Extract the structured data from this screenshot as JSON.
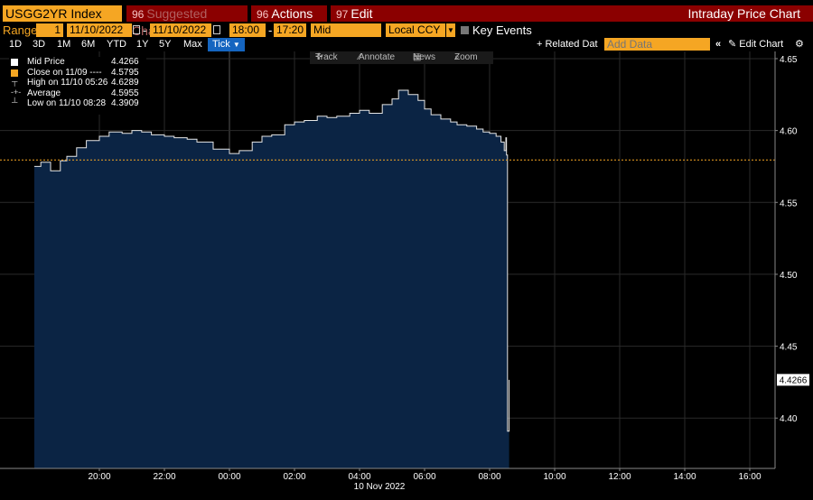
{
  "toolbar": {
    "ticker": "USGG2YR Index",
    "suggested": {
      "num": "96",
      "label": "Suggested Charts"
    },
    "actions": {
      "num": "96",
      "label": "Actions"
    },
    "edit": {
      "num": "97",
      "label": "Edit"
    },
    "title": "Intraday Price Chart"
  },
  "range_bar": {
    "range_label": "Range",
    "range_num": "1",
    "start_date": "11/10/2022",
    "end_date": "11/10/2022",
    "start_time": "18:00",
    "end_time": "17:20",
    "price_type": "Mid",
    "currency": "Local CCY",
    "key_events": "Key Events",
    "related_data": "Related Dat",
    "add_data_placeholder": "Add Data",
    "edit_chart": "Edit Chart"
  },
  "periods": [
    "1D",
    "3D",
    "1M",
    "6M",
    "YTD",
    "1Y",
    "5Y",
    "Max"
  ],
  "period_selected": "Tick",
  "tools": {
    "track": "Track",
    "annotate": "Annotate",
    "news": "News",
    "zoom": "Zoom"
  },
  "legend": [
    {
      "name": "Mid Price",
      "value": "4.4266",
      "color": "#ffffff"
    },
    {
      "name": "Close on 11/09 ----",
      "value": "4.5795",
      "color": "#f5a623"
    },
    {
      "name": "High on 11/10 05:26",
      "value": "4.6289",
      "color": "#cccccc"
    },
    {
      "name": "Average",
      "value": "4.5955",
      "color": "#cccccc"
    },
    {
      "name": "Low on 11/10 08:28",
      "value": "4.3909",
      "color": "#cccccc"
    }
  ],
  "colors": {
    "accent": "#f5a623",
    "header_red": "#8b0000",
    "area_fill": "#0b2444",
    "selected_blue": "#1565c0"
  },
  "chart_data": {
    "type": "area",
    "xlabel": "10 Nov 2022",
    "x_ticks": [
      "20:00",
      "22:00",
      "00:00",
      "02:00",
      "04:00",
      "06:00",
      "08:00",
      "10:00",
      "12:00",
      "14:00",
      "16:00"
    ],
    "y_ticks": [
      "4.40",
      "4.45",
      "4.50",
      "4.55",
      "4.60",
      "4.65"
    ],
    "ylim": [
      4.365,
      4.655
    ],
    "last_price_label": "4.4266",
    "close_prev": 4.5795,
    "x_hours_since_18": [
      0.0,
      0.2,
      0.5,
      0.8,
      1.0,
      1.3,
      1.6,
      2.0,
      2.3,
      2.7,
      3.0,
      3.3,
      3.6,
      4.0,
      4.3,
      4.7,
      5.0,
      5.5,
      6.0,
      6.3,
      6.7,
      7.0,
      7.3,
      7.7,
      8.0,
      8.3,
      8.7,
      9.0,
      9.3,
      9.7,
      10.0,
      10.3,
      10.7,
      11.0,
      11.2,
      11.5,
      11.8,
      12.0,
      12.2,
      12.5,
      12.8,
      13.0,
      13.3,
      13.6,
      13.8,
      14.0,
      14.2,
      14.35,
      14.45,
      14.5,
      14.52,
      14.55,
      14.6
    ],
    "values": [
      4.575,
      4.578,
      4.572,
      4.579,
      4.582,
      4.588,
      4.593,
      4.596,
      4.599,
      4.598,
      4.6,
      4.599,
      4.597,
      4.596,
      4.595,
      4.594,
      4.592,
      4.587,
      4.584,
      4.586,
      4.592,
      4.596,
      4.597,
      4.604,
      4.606,
      4.607,
      4.61,
      4.609,
      4.61,
      4.612,
      4.614,
      4.612,
      4.618,
      4.622,
      4.628,
      4.625,
      4.621,
      4.615,
      4.611,
      4.608,
      4.606,
      4.604,
      4.603,
      4.601,
      4.599,
      4.598,
      4.596,
      4.592,
      4.586,
      4.595,
      4.583,
      4.3909,
      4.4266
    ]
  }
}
